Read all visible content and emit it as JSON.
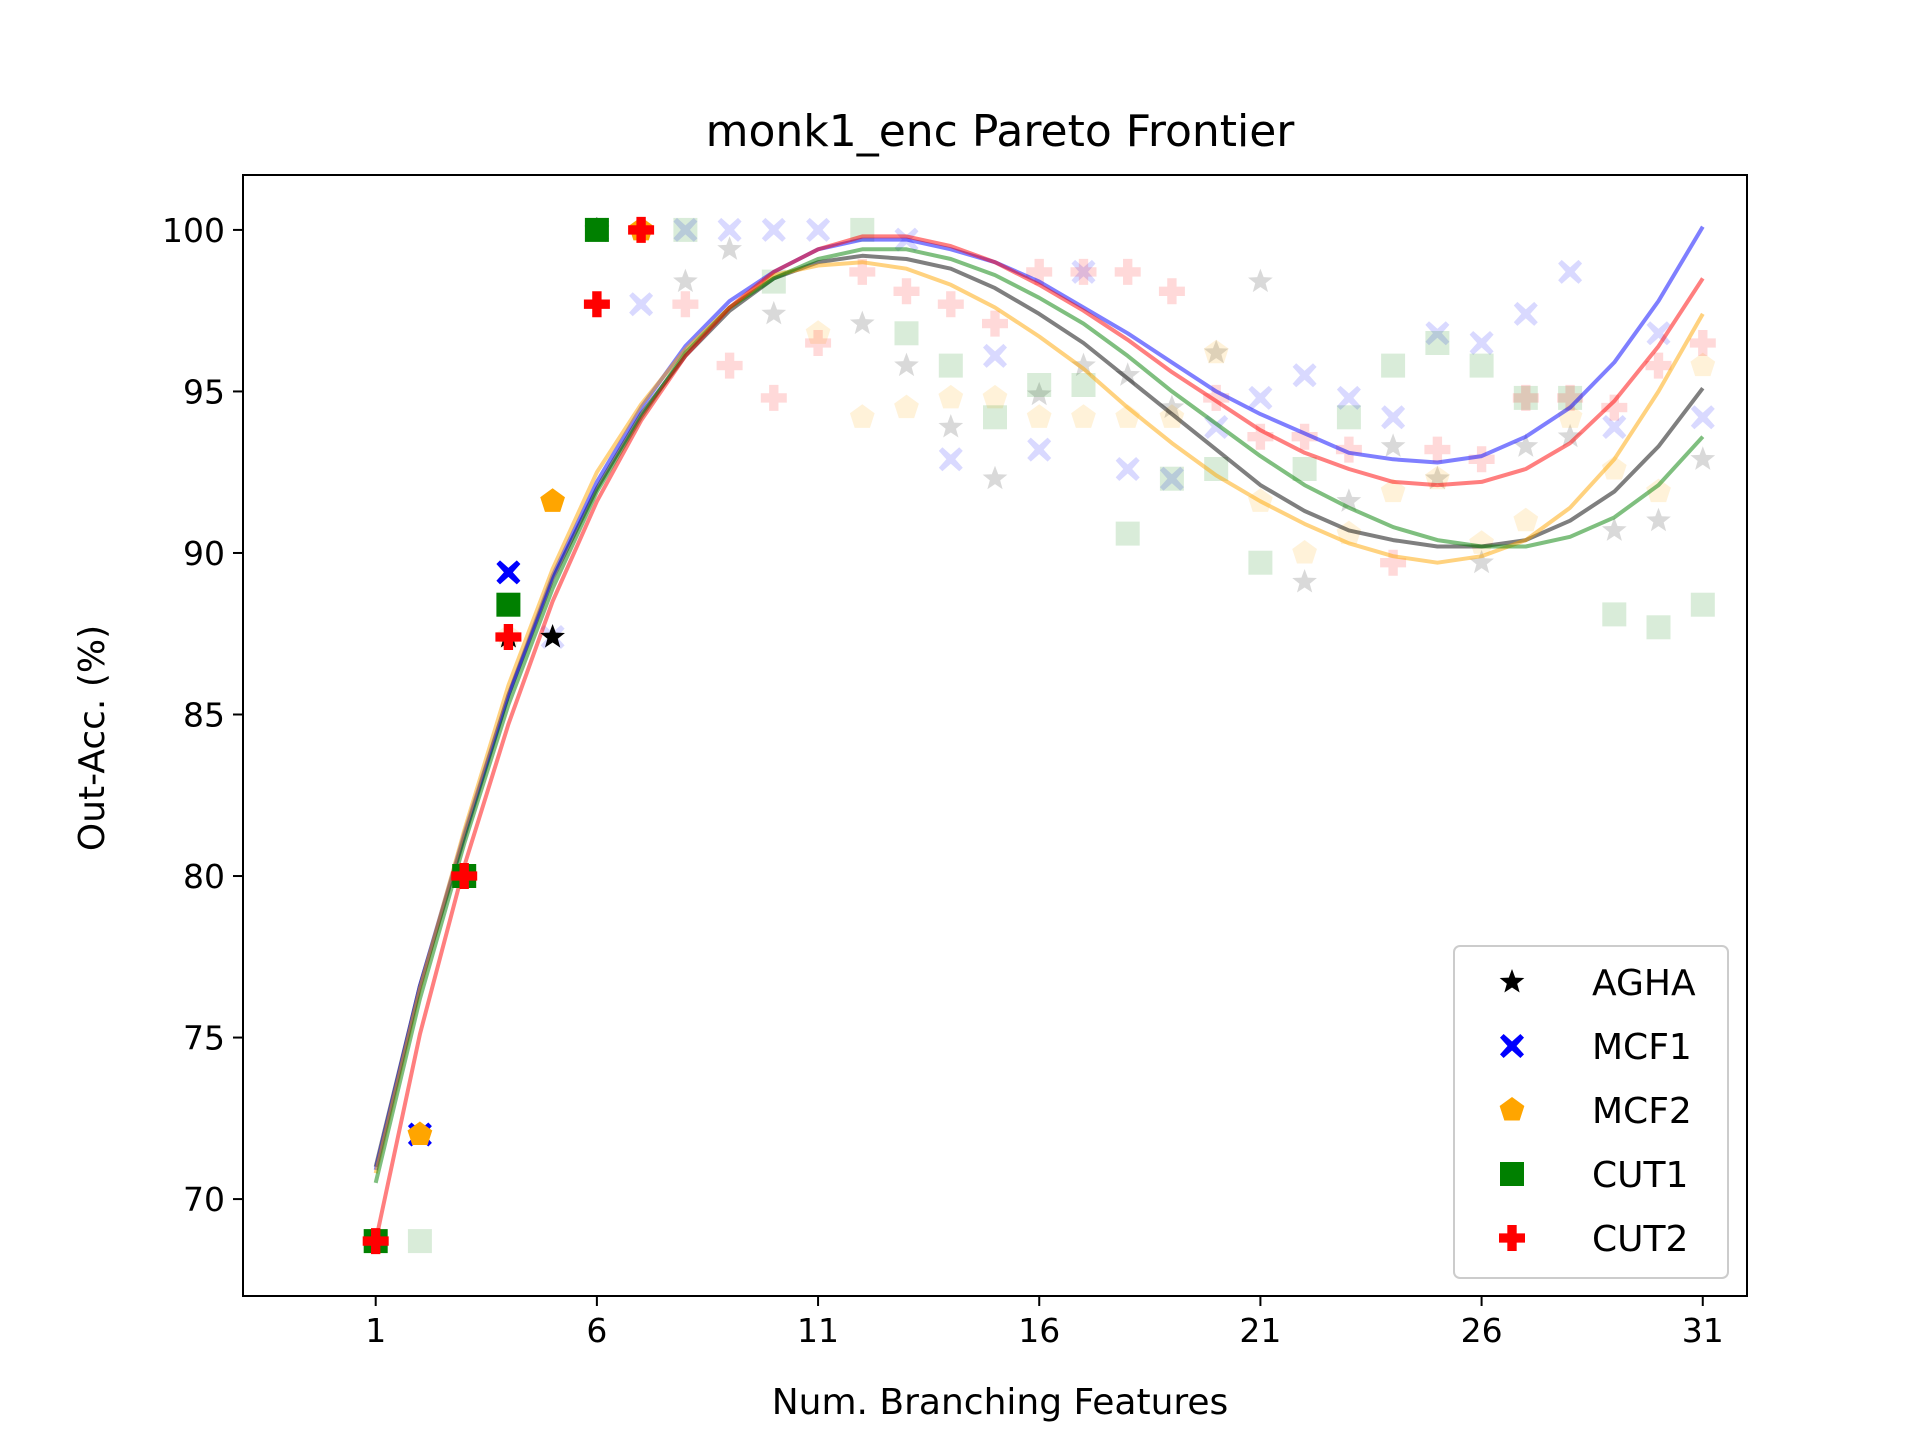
{
  "chart_data": {
    "type": "scatter",
    "title": "monk1_enc Pareto Frontier",
    "xlabel": "Num. Branching Features",
    "ylabel": "Out-Acc. (%)",
    "xlim": [
      -2,
      32
    ],
    "ylim": [
      67,
      101.7
    ],
    "xticks": [
      1,
      6,
      11,
      16,
      21,
      26,
      31
    ],
    "yticks": [
      70,
      75,
      80,
      85,
      90,
      95,
      100
    ],
    "legend_position": "lower right",
    "series": [
      {
        "name": "AGHA",
        "marker": "star",
        "color": "#000000",
        "frontier": [
          [
            2,
            72
          ],
          [
            3,
            80
          ],
          [
            4,
            87.4
          ],
          [
            5,
            87.4
          ],
          [
            6,
            100
          ]
        ],
        "points": [
          [
            8,
            98.4
          ],
          [
            9,
            99.4
          ],
          [
            10,
            97.4
          ],
          [
            12,
            97.1
          ],
          [
            13,
            95.8
          ],
          [
            14,
            93.9
          ],
          [
            15,
            92.3
          ],
          [
            16,
            94.9
          ],
          [
            17,
            95.8
          ],
          [
            18,
            95.5
          ],
          [
            19,
            94.5
          ],
          [
            20,
            96.2
          ],
          [
            21,
            98.4
          ],
          [
            22,
            89.1
          ],
          [
            23,
            91.6
          ],
          [
            24,
            93.3
          ],
          [
            25,
            92.3
          ],
          [
            26,
            89.7
          ],
          [
            27,
            93.3
          ],
          [
            28,
            93.6
          ],
          [
            29,
            90.7
          ],
          [
            30,
            91
          ],
          [
            31,
            92.9
          ]
        ],
        "curve": [
          [
            1,
            71
          ],
          [
            2,
            76.6
          ],
          [
            3,
            81.2
          ],
          [
            4,
            85.6
          ],
          [
            5,
            89.2
          ],
          [
            6,
            92
          ],
          [
            7,
            94.3
          ],
          [
            8,
            96.1
          ],
          [
            9,
            97.5
          ],
          [
            10,
            98.5
          ],
          [
            11,
            99
          ],
          [
            12,
            99.2
          ],
          [
            13,
            99.1
          ],
          [
            14,
            98.8
          ],
          [
            15,
            98.2
          ],
          [
            16,
            97.4
          ],
          [
            17,
            96.5
          ],
          [
            18,
            95.4
          ],
          [
            19,
            94.3
          ],
          [
            20,
            93.2
          ],
          [
            21,
            92.1
          ],
          [
            22,
            91.3
          ],
          [
            23,
            90.7
          ],
          [
            24,
            90.4
          ],
          [
            25,
            90.2
          ],
          [
            26,
            90.2
          ],
          [
            27,
            90.4
          ],
          [
            28,
            91
          ],
          [
            29,
            91.9
          ],
          [
            30,
            93.3
          ],
          [
            31,
            95.1
          ]
        ]
      },
      {
        "name": "MCF1",
        "marker": "x",
        "color": "#0000ff",
        "frontier": [
          [
            2,
            72
          ],
          [
            4,
            89.4
          ],
          [
            6,
            100
          ]
        ],
        "points": [
          [
            5,
            87.4
          ],
          [
            7,
            97.7
          ],
          [
            8,
            100
          ],
          [
            9,
            100
          ],
          [
            10,
            100
          ],
          [
            11,
            100
          ],
          [
            13,
            99.7
          ],
          [
            14,
            92.9
          ],
          [
            15,
            96.1
          ],
          [
            16,
            93.2
          ],
          [
            17,
            98.7
          ],
          [
            18,
            92.6
          ],
          [
            19,
            92.3
          ],
          [
            20,
            93.9
          ],
          [
            21,
            94.8
          ],
          [
            22,
            95.5
          ],
          [
            23,
            94.8
          ],
          [
            24,
            94.2
          ],
          [
            25,
            96.8
          ],
          [
            26,
            96.5
          ],
          [
            27,
            97.4
          ],
          [
            28,
            98.7
          ],
          [
            29,
            93.9
          ],
          [
            30,
            96.8
          ],
          [
            31,
            94.2
          ]
        ],
        "curve": [
          [
            1,
            70.9
          ],
          [
            2,
            76.6
          ],
          [
            3,
            81.3
          ],
          [
            4,
            85.6
          ],
          [
            5,
            89.3
          ],
          [
            6,
            92.2
          ],
          [
            7,
            94.5
          ],
          [
            8,
            96.4
          ],
          [
            9,
            97.8
          ],
          [
            10,
            98.7
          ],
          [
            11,
            99.4
          ],
          [
            12,
            99.7
          ],
          [
            13,
            99.7
          ],
          [
            14,
            99.4
          ],
          [
            15,
            99
          ],
          [
            16,
            98.4
          ],
          [
            17,
            97.6
          ],
          [
            18,
            96.8
          ],
          [
            19,
            95.9
          ],
          [
            20,
            95
          ],
          [
            21,
            94.3
          ],
          [
            22,
            93.7
          ],
          [
            23,
            93.1
          ],
          [
            24,
            92.9
          ],
          [
            25,
            92.8
          ],
          [
            26,
            93
          ],
          [
            27,
            93.6
          ],
          [
            28,
            94.5
          ],
          [
            29,
            95.9
          ],
          [
            30,
            97.8
          ],
          [
            31,
            100.1
          ]
        ]
      },
      {
        "name": "MCF2",
        "marker": "pentagon",
        "color": "#ffa500",
        "frontier": [
          [
            2,
            72
          ],
          [
            5,
            91.6
          ],
          [
            7,
            100
          ]
        ],
        "points": [
          [
            4,
            87.4
          ],
          [
            11,
            96.8
          ],
          [
            12,
            94.2
          ],
          [
            13,
            94.5
          ],
          [
            14,
            94.8
          ],
          [
            15,
            94.8
          ],
          [
            16,
            94.2
          ],
          [
            17,
            94.2
          ],
          [
            18,
            94.2
          ],
          [
            19,
            94.2
          ],
          [
            20,
            96.2
          ],
          [
            21,
            91.6
          ],
          [
            22,
            90
          ],
          [
            23,
            90.6
          ],
          [
            24,
            91.9
          ],
          [
            25,
            92.3
          ],
          [
            26,
            90.3
          ],
          [
            27,
            91
          ],
          [
            28,
            94.2
          ],
          [
            29,
            92.6
          ],
          [
            30,
            91.9
          ],
          [
            31,
            95.8
          ]
        ],
        "curve": [
          [
            1,
            70.8
          ],
          [
            2,
            76.5
          ],
          [
            3,
            81.4
          ],
          [
            4,
            85.9
          ],
          [
            5,
            89.5
          ],
          [
            6,
            92.5
          ],
          [
            7,
            94.6
          ],
          [
            8,
            96.3
          ],
          [
            9,
            97.6
          ],
          [
            10,
            98.6
          ],
          [
            11,
            98.9
          ],
          [
            12,
            99
          ],
          [
            13,
            98.8
          ],
          [
            14,
            98.3
          ],
          [
            15,
            97.6
          ],
          [
            16,
            96.7
          ],
          [
            17,
            95.7
          ],
          [
            18,
            94.5
          ],
          [
            19,
            93.4
          ],
          [
            20,
            92.4
          ],
          [
            21,
            91.6
          ],
          [
            22,
            90.9
          ],
          [
            23,
            90.3
          ],
          [
            24,
            89.9
          ],
          [
            25,
            89.7
          ],
          [
            26,
            89.9
          ],
          [
            27,
            90.4
          ],
          [
            28,
            91.4
          ],
          [
            29,
            92.9
          ],
          [
            30,
            95
          ],
          [
            31,
            97.4
          ]
        ]
      },
      {
        "name": "CUT1",
        "marker": "square",
        "color": "#008000",
        "frontier": [
          [
            1,
            68.7
          ],
          [
            3,
            80
          ],
          [
            4,
            88.4
          ],
          [
            6,
            100
          ]
        ],
        "points": [
          [
            2,
            68.7
          ],
          [
            8,
            100
          ],
          [
            10,
            98.4
          ],
          [
            12,
            100
          ],
          [
            13,
            96.8
          ],
          [
            14,
            95.8
          ],
          [
            15,
            94.2
          ],
          [
            16,
            95.2
          ],
          [
            17,
            95.2
          ],
          [
            18,
            90.6
          ],
          [
            19,
            92.3
          ],
          [
            20,
            92.6
          ],
          [
            21,
            89.7
          ],
          [
            22,
            92.6
          ],
          [
            23,
            94.2
          ],
          [
            24,
            95.8
          ],
          [
            25,
            96.5
          ],
          [
            26,
            95.8
          ],
          [
            27,
            94.8
          ],
          [
            28,
            94.8
          ],
          [
            29,
            88.1
          ],
          [
            30,
            87.7
          ],
          [
            31,
            88.4
          ]
        ],
        "curve": [
          [
            1,
            70.5
          ],
          [
            2,
            76.2
          ],
          [
            3,
            81
          ],
          [
            4,
            85.3
          ],
          [
            5,
            88.9
          ],
          [
            6,
            91.9
          ],
          [
            7,
            94.2
          ],
          [
            8,
            96.2
          ],
          [
            9,
            97.6
          ],
          [
            10,
            98.5
          ],
          [
            11,
            99.1
          ],
          [
            12,
            99.4
          ],
          [
            13,
            99.4
          ],
          [
            14,
            99.1
          ],
          [
            15,
            98.6
          ],
          [
            16,
            97.9
          ],
          [
            17,
            97.1
          ],
          [
            18,
            96.1
          ],
          [
            19,
            95
          ],
          [
            20,
            94
          ],
          [
            21,
            93
          ],
          [
            22,
            92.1
          ],
          [
            23,
            91.4
          ],
          [
            24,
            90.8
          ],
          [
            25,
            90.4
          ],
          [
            26,
            90.2
          ],
          [
            27,
            90.2
          ],
          [
            28,
            90.5
          ],
          [
            29,
            91.1
          ],
          [
            30,
            92.1
          ],
          [
            31,
            93.6
          ]
        ]
      },
      {
        "name": "CUT2",
        "marker": "plus",
        "color": "#ff0000",
        "frontier": [
          [
            1,
            68.7
          ],
          [
            3,
            80
          ],
          [
            4,
            87.4
          ],
          [
            6,
            97.7
          ],
          [
            7,
            100
          ]
        ],
        "points": [
          [
            8,
            97.7
          ],
          [
            9,
            95.8
          ],
          [
            10,
            94.8
          ],
          [
            11,
            96.5
          ],
          [
            12,
            98.7
          ],
          [
            13,
            98.1
          ],
          [
            14,
            97.7
          ],
          [
            15,
            97.1
          ],
          [
            16,
            98.7
          ],
          [
            17,
            98.7
          ],
          [
            18,
            98.7
          ],
          [
            19,
            98.1
          ],
          [
            20,
            94.8
          ],
          [
            21,
            93.6
          ],
          [
            22,
            93.6
          ],
          [
            23,
            93.2
          ],
          [
            24,
            89.7
          ],
          [
            25,
            93.2
          ],
          [
            26,
            92.9
          ],
          [
            27,
            94.8
          ],
          [
            28,
            94.8
          ],
          [
            29,
            94.5
          ],
          [
            30,
            95.8
          ],
          [
            31,
            96.5
          ]
        ],
        "curve": [
          [
            1,
            68.7
          ],
          [
            2,
            75.1
          ],
          [
            3,
            80.3
          ],
          [
            4,
            84.7
          ],
          [
            5,
            88.5
          ],
          [
            6,
            91.6
          ],
          [
            7,
            94.1
          ],
          [
            8,
            96.1
          ],
          [
            9,
            97.6
          ],
          [
            10,
            98.7
          ],
          [
            11,
            99.4
          ],
          [
            12,
            99.8
          ],
          [
            13,
            99.8
          ],
          [
            14,
            99.5
          ],
          [
            15,
            99
          ],
          [
            16,
            98.3
          ],
          [
            17,
            97.5
          ],
          [
            18,
            96.6
          ],
          [
            19,
            95.6
          ],
          [
            20,
            94.7
          ],
          [
            21,
            93.8
          ],
          [
            22,
            93.1
          ],
          [
            23,
            92.6
          ],
          [
            24,
            92.2
          ],
          [
            25,
            92.1
          ],
          [
            26,
            92.2
          ],
          [
            27,
            92.6
          ],
          [
            28,
            93.4
          ],
          [
            29,
            94.7
          ],
          [
            30,
            96.4
          ],
          [
            31,
            98.5
          ]
        ]
      }
    ]
  }
}
